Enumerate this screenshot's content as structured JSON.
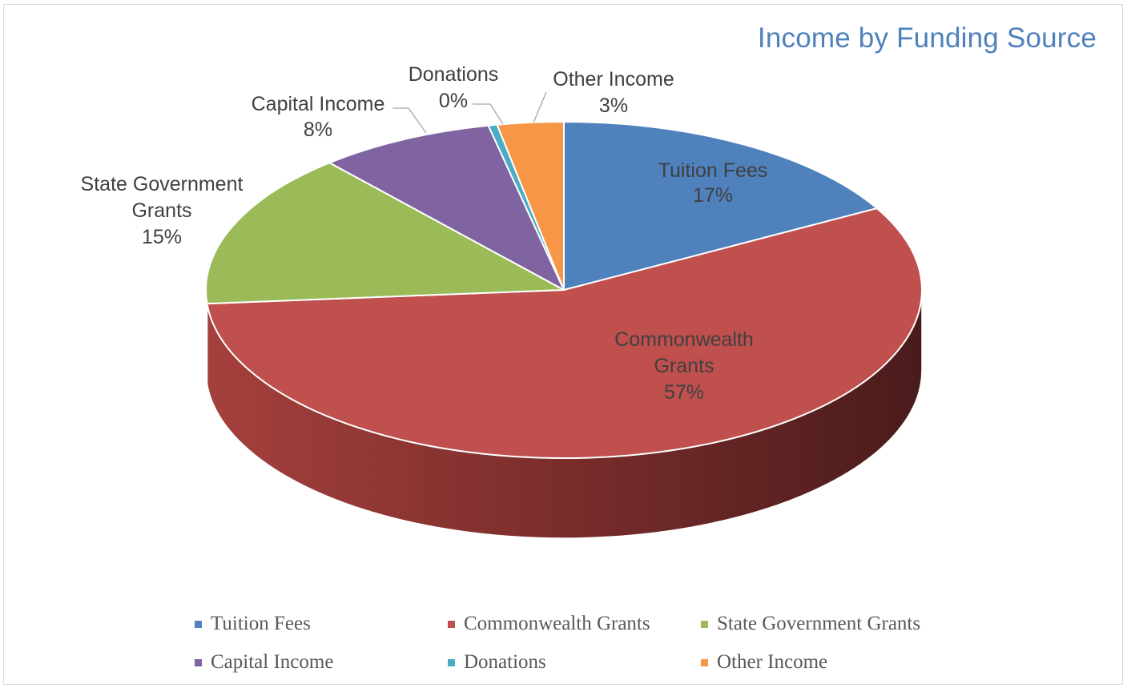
{
  "chart_data": {
    "type": "pie",
    "title": "Income by Funding Source",
    "three_d": true,
    "categories": [
      "Tuition Fees",
      "Commonwealth Grants",
      "State Government Grants",
      "Capital Income",
      "Donations",
      "Other Income"
    ],
    "values": [
      17,
      57,
      15,
      8,
      0.4,
      3
    ],
    "percent_labels": [
      "17%",
      "57%",
      "15%",
      "8%",
      "0%",
      "3%"
    ],
    "colors": [
      "#4f81bd",
      "#c0504d",
      "#9bbb59",
      "#8064a2",
      "#4bacc6",
      "#f79646"
    ],
    "legend_position": "bottom"
  }
}
